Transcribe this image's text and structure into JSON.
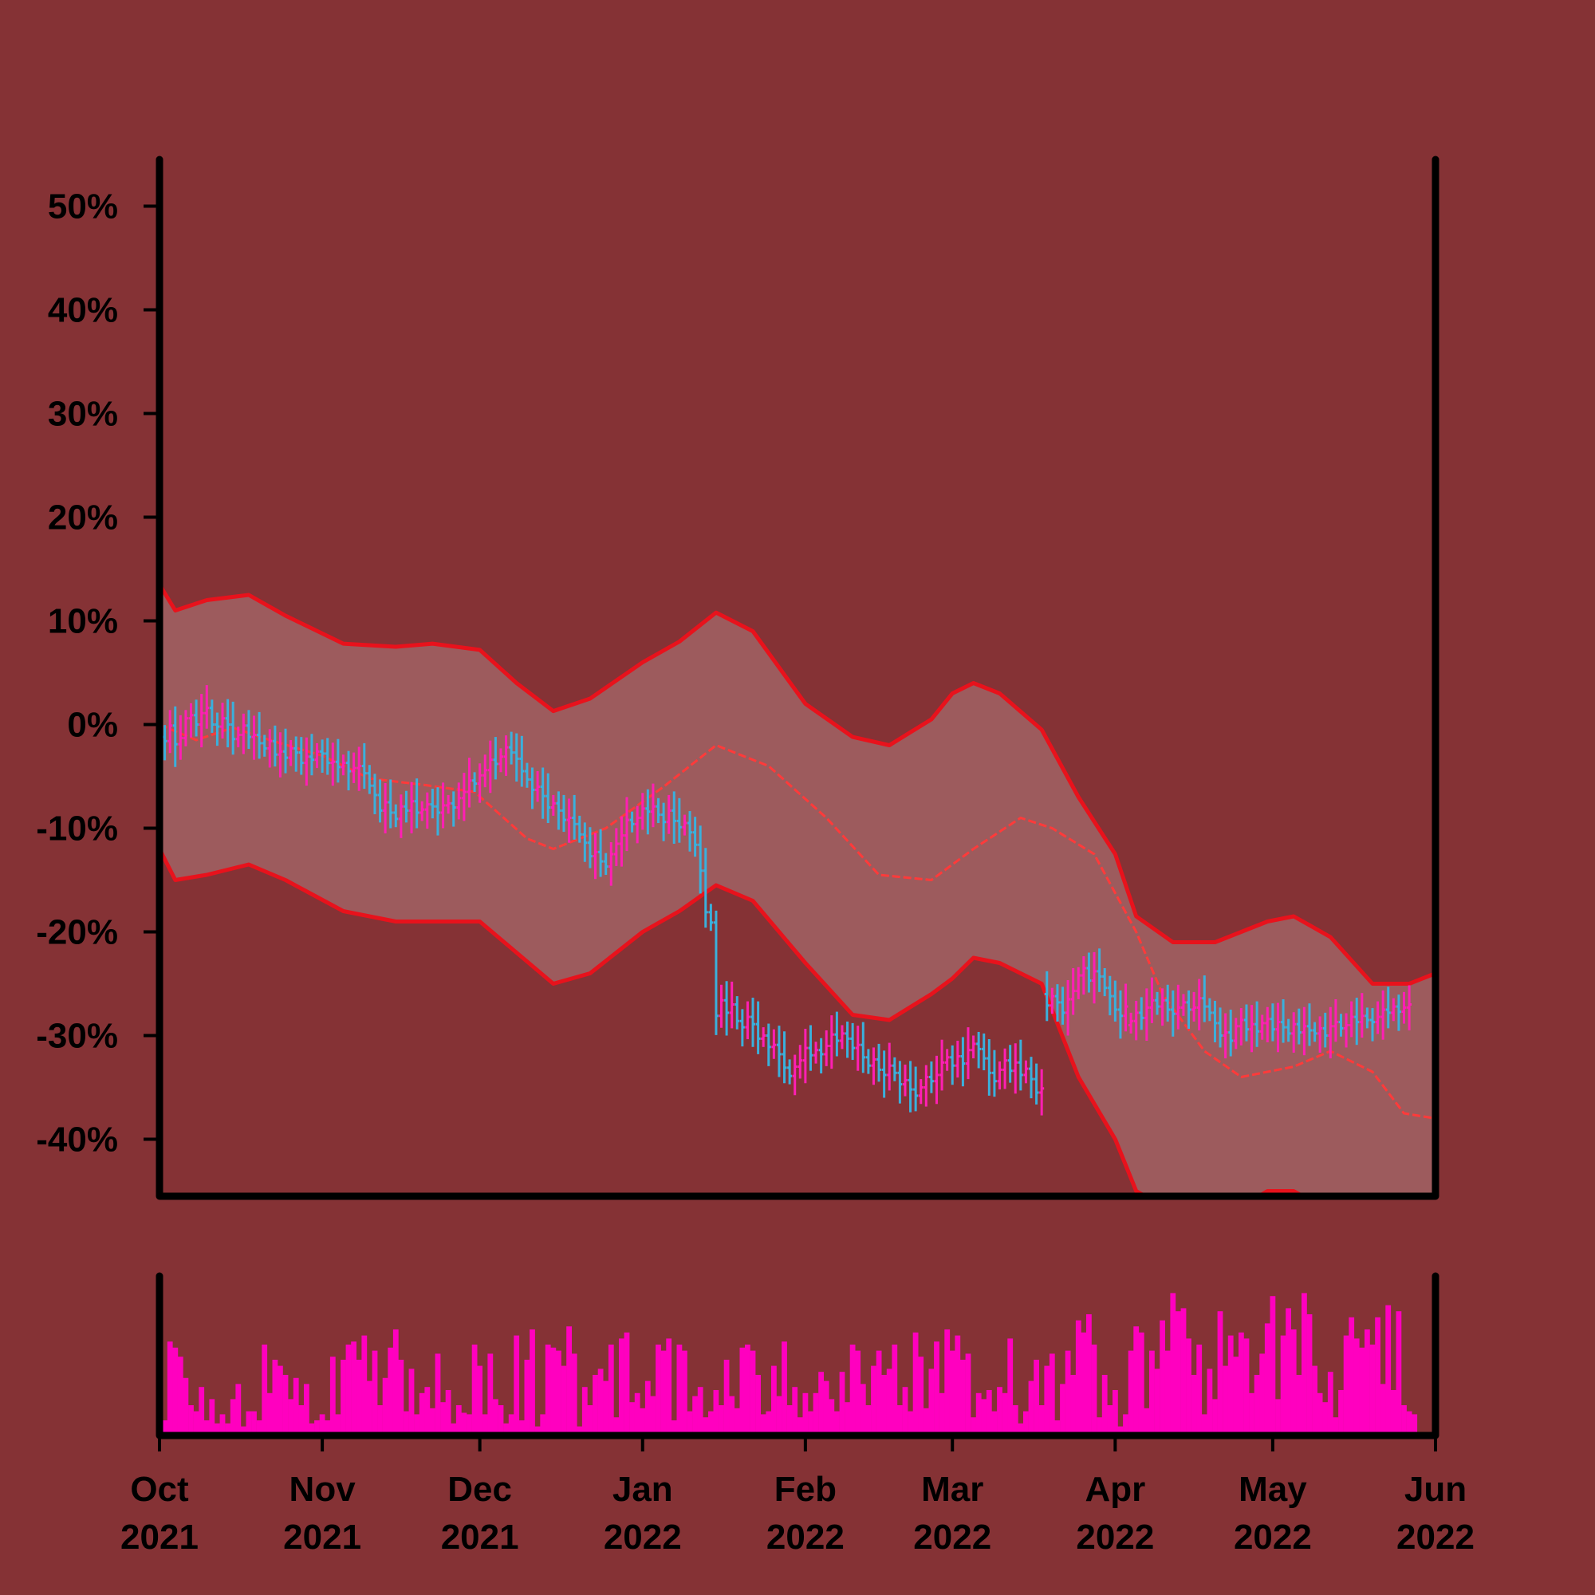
{
  "chart_data": {
    "type": "ohlc",
    "title": "",
    "xlabel": "",
    "ylabel": "",
    "background": "#853235",
    "colors": {
      "up": "#ff1fb4",
      "down": "#3ab0dc",
      "band_line": "#e8121c",
      "band_fill": "#9d5b5d",
      "volume": "#ff00bf",
      "axis": "#000000"
    },
    "y_axis": {
      "ylim": [
        -45.5,
        54.5
      ],
      "ticks": [
        50,
        40,
        30,
        20,
        10,
        0,
        -10,
        -20,
        -30,
        -40
      ],
      "tick_labels": [
        "50%",
        "40%",
        "30%",
        "20%",
        "10%",
        "0%",
        "-10%",
        "-20%",
        "-30%",
        "-40%"
      ]
    },
    "x_axis": {
      "xlim": [
        "2021-10-01",
        "2022-06-01"
      ],
      "ticks": [
        "2021-10-01",
        "2021-11-01",
        "2021-12-01",
        "2022-01-01",
        "2022-02-01",
        "2022-03-01",
        "2022-04-01",
        "2022-05-01",
        "2022-06-01"
      ],
      "tick_labels": [
        [
          "Oct",
          "2021"
        ],
        [
          "Nov",
          "2021"
        ],
        [
          "Dec",
          "2021"
        ],
        [
          "Jan",
          "2022"
        ],
        [
          "Feb",
          "2022"
        ],
        [
          "Mar",
          "2022"
        ],
        [
          "Apr",
          "2022"
        ],
        [
          "May",
          "2022"
        ],
        [
          "Jun",
          "2022"
        ]
      ]
    },
    "moving_average": {
      "name": "",
      "dates": [
        "2021-10-01",
        "2021-10-08",
        "2021-10-15",
        "2021-10-22",
        "2021-11-01",
        "2021-11-10",
        "2021-11-20",
        "2021-11-30",
        "2021-12-10",
        "2021-12-15",
        "2021-12-25",
        "2022-01-05",
        "2022-01-15",
        "2022-01-25",
        "2022-02-05",
        "2022-02-15",
        "2022-02-25",
        "2022-03-05",
        "2022-03-14",
        "2022-03-20",
        "2022-03-28",
        "2022-04-05",
        "2022-04-10",
        "2022-04-18",
        "2022-04-25",
        "2022-05-05",
        "2022-05-12",
        "2022-05-20",
        "2022-05-26",
        "2022-06-01"
      ],
      "values": [
        0,
        -1.5,
        -0.3,
        -1.5,
        -3,
        -5.2,
        -5.8,
        -6.5,
        -11,
        -12,
        -10,
        -6,
        -2,
        -4,
        -9,
        -14.5,
        -15,
        -12,
        -9,
        -10,
        -12.5,
        -20,
        -26,
        -31.5,
        -34,
        -33,
        -31.5,
        -33.5,
        -37.5,
        -38
      ]
    },
    "band_upper": {
      "dates": [
        "2021-10-01",
        "2021-10-04",
        "2021-10-10",
        "2021-10-18",
        "2021-10-25",
        "2021-11-05",
        "2021-11-15",
        "2021-11-22",
        "2021-12-01",
        "2021-12-08",
        "2021-12-15",
        "2021-12-22",
        "2022-01-01",
        "2022-01-08",
        "2022-01-15",
        "2022-01-22",
        "2022-02-01",
        "2022-02-10",
        "2022-02-17",
        "2022-02-25",
        "2022-03-01",
        "2022-03-05",
        "2022-03-10",
        "2022-03-18",
        "2022-03-25",
        "2022-04-01",
        "2022-04-05",
        "2022-04-12",
        "2022-04-20",
        "2022-04-30",
        "2022-05-05",
        "2022-05-12",
        "2022-05-20",
        "2022-05-27",
        "2022-06-01"
      ],
      "values": [
        13.5,
        11,
        12,
        12.5,
        10.5,
        7.8,
        7.5,
        7.8,
        7.2,
        4,
        1.3,
        2.5,
        6,
        8,
        10.8,
        9,
        2,
        -1.2,
        -2,
        0.5,
        3,
        4,
        3,
        -0.5,
        -7,
        -12.5,
        -18.5,
        -21,
        -21,
        -19,
        -18.5,
        -20.5,
        -25,
        -25,
        -24
      ]
    },
    "band_lower": {
      "dates": [
        "2021-10-01",
        "2021-10-04",
        "2021-10-10",
        "2021-10-18",
        "2021-10-25",
        "2021-11-05",
        "2021-11-15",
        "2021-11-22",
        "2021-12-01",
        "2021-12-08",
        "2021-12-15",
        "2021-12-22",
        "2022-01-01",
        "2022-01-08",
        "2022-01-15",
        "2022-01-22",
        "2022-02-01",
        "2022-02-10",
        "2022-02-17",
        "2022-02-25",
        "2022-03-01",
        "2022-03-05",
        "2022-03-10",
        "2022-03-18",
        "2022-03-25",
        "2022-04-01",
        "2022-04-05",
        "2022-04-12",
        "2022-04-20",
        "2022-04-30",
        "2022-05-05",
        "2022-05-12",
        "2022-05-20",
        "2022-05-27",
        "2022-06-01"
      ],
      "values": [
        -12,
        -15,
        -14.5,
        -13.5,
        -15,
        -18,
        -19,
        -19,
        -19,
        -22,
        -25,
        -24,
        -20,
        -18,
        -15.5,
        -17,
        -23,
        -28,
        -28.5,
        -26,
        -24.5,
        -22.5,
        -23,
        -25,
        -34,
        -40,
        -45,
        -47,
        -48,
        -45,
        -45,
        -47,
        -52,
        -52,
        -53
      ]
    },
    "ohlc_daily_changes": [
      -1.2,
      -0.4,
      1.5,
      -1.8,
      0.6,
      1.9,
      0.3,
      -0.9,
      1.1,
      0.5,
      -1.6,
      -0.2,
      0.8,
      -0.6,
      -1.4,
      0.4,
      0.9,
      -1.1,
      0.2,
      -0.8,
      -0.5,
      0.7,
      -1.3,
      0.3,
      -0.6,
      0.9,
      -0.4,
      -1.0,
      0.6,
      -0.3,
      0.8,
      -0.2,
      -0.9,
      0.1,
      -0.5,
      0.4,
      -0.8,
      0.3,
      0.2,
      -0.7,
      -1.2,
      -0.9,
      -1.5,
      0.8,
      -1.0,
      -0.6,
      1.2,
      -0.4,
      0.9,
      -1.1,
      0.3,
      0.5,
      -0.2,
      -0.6,
      0.7,
      0.2,
      -0.4,
      0.9,
      0.6,
      1.1,
      -0.3,
      0.8,
      0.5,
      1.0,
      -0.4,
      0.7,
      0.9,
      -0.5,
      -0.6,
      -1.2,
      -0.8,
      -1.0,
      0.3,
      -0.9,
      -1.1,
      0.4,
      -0.7,
      -0.9,
      0.2,
      -0.6,
      -1.0,
      -0.8,
      -1.3,
      0.4,
      -0.9,
      -0.5,
      1.2,
      1.0,
      0.8,
      1.5,
      -0.4,
      0.6,
      0.9,
      -0.3,
      0.5,
      -0.8,
      -0.7,
      1.1,
      -1.0,
      -0.6,
      0.4,
      -0.9,
      -1.2,
      -2.5,
      -4.0,
      -1.0,
      -9.0,
      1.5,
      -1.2,
      0.8,
      -1.6,
      -0.6,
      1.0,
      -0.7,
      -1.4,
      0.3,
      -1.1,
      0.2,
      -0.9,
      -1.3,
      -0.8,
      0.9,
      0.6,
      1.2,
      -0.7,
      0.5,
      -0.4,
      0.8,
      1.1,
      -0.6,
      0.7,
      -0.5,
      -0.9,
      0.3,
      -1.2,
      -0.8,
      0.6,
      -1.0,
      -0.5,
      0.9,
      -0.7,
      -1.1,
      0.4,
      -0.9,
      -0.6,
      0.8,
      1.0,
      -0.4,
      0.6,
      1.2,
      0.5,
      -0.8,
      0.9,
      -0.7,
      1.3,
      0.6,
      -0.5,
      -0.9,
      -1.4,
      -0.8,
      1.1,
      0.9,
      -1.0,
      0.8,
      -1.2,
      0.6,
      -1.0,
      -1.3,
      0.4,
      -1.1,
      0.9,
      -0.6,
      -1.0,
      1.3,
      0.8,
      1.5,
      0.7,
      -1.2,
      0.9,
      -0.5,
      -1.1,
      -0.8,
      -1.3,
      -0.6,
      0.9,
      0.4,
      0.8,
      -0.5,
      1.0,
      0.7,
      -0.6,
      0.6,
      -0.9,
      -0.4,
      0.6,
      0.5,
      -0.7,
      0.2,
      0.9,
      -0.8,
      -0.6,
      -1.0,
      -1.2,
      0.3,
      -0.8,
      1.4,
      0.6,
      -0.9,
      0.5,
      -0.7,
      0.8,
      0.4,
      -1.0,
      0.7,
      -0.5,
      -0.6,
      0.9,
      -0.8,
      0.6,
      -0.4,
      -0.3,
      0.5,
      -0.7,
      0.9,
      0.4,
      -0.6,
      0.3,
      0.8,
      -0.5,
      0.6,
      -0.4,
      -0.2,
      0.5,
      0.7,
      -0.3,
      0.6,
      -0.5,
      0.4,
      0.3
    ],
    "ohlc_breaks": {
      "2022-03-19": -26,
      "2022-04-04": -29
    },
    "volume": {
      "note": "relative daily volume, max = 1",
      "values": [
        0.33,
        0.1,
        0.62,
        0.58,
        0.52,
        0.38,
        0.2,
        0.16,
        0.32,
        0.1,
        0.24,
        0.08,
        0.14,
        0.08,
        0.24,
        0.34,
        0.06,
        0.16,
        0.16,
        0.1,
        0.6,
        0.28,
        0.5,
        0.46,
        0.4,
        0.24,
        0.38,
        0.2,
        0.34,
        0.08,
        0.1,
        0.14,
        0.1,
        0.52,
        0.14,
        0.5,
        0.6,
        0.62,
        0.5,
        0.66,
        0.36,
        0.56,
        0.2,
        0.38,
        0.58,
        0.7,
        0.5,
        0.16,
        0.44,
        0.14,
        0.28,
        0.32,
        0.18,
        0.54,
        0.22,
        0.3,
        0.08,
        0.2,
        0.15,
        0.14,
        0.6,
        0.46,
        0.14,
        0.54,
        0.24,
        0.2,
        0.08,
        0.14,
        0.66,
        0.1,
        0.5,
        0.7,
        0.06,
        0.14,
        0.6,
        0.58,
        0.56,
        0.46,
        0.72,
        0.54,
        0.06,
        0.32,
        0.2,
        0.4,
        0.44,
        0.36,
        0.6,
        0.12,
        0.64,
        0.68,
        0.22,
        0.28,
        0.18,
        0.36,
        0.26,
        0.6,
        0.56,
        0.64,
        0.1,
        0.6,
        0.56,
        0.16,
        0.26,
        0.32,
        0.12,
        0.16,
        0.3,
        0.2,
        0.5,
        0.26,
        0.18,
        0.58,
        0.6,
        0.56,
        0.4,
        0.14,
        0.16,
        0.46,
        0.26,
        0.62,
        0.2,
        0.32,
        0.12,
        0.28,
        0.16,
        0.28,
        0.42,
        0.36,
        0.24,
        0.16,
        0.42,
        0.22,
        0.6,
        0.56,
        0.34,
        0.2,
        0.46,
        0.56,
        0.4,
        0.44,
        0.6,
        0.2,
        0.32,
        0.16,
        0.68,
        0.52,
        0.18,
        0.44,
        0.62,
        0.28,
        0.7,
        0.56,
        0.66,
        0.5,
        0.54,
        0.12,
        0.28,
        0.24,
        0.3,
        0.16,
        0.32,
        0.28,
        0.64,
        0.2,
        0.08,
        0.16,
        0.36,
        0.5,
        0.2,
        0.46,
        0.54,
        0.1,
        0.34,
        0.56,
        0.4,
        0.76,
        0.68,
        0.8,
        0.6,
        0.12,
        0.4,
        0.2,
        0.3,
        0.06,
        0.14,
        0.56,
        0.72,
        0.68,
        0.18,
        0.56,
        0.44,
        0.76,
        0.56,
        0.94,
        0.82,
        0.84,
        0.64,
        0.4,
        0.6,
        0.14,
        0.44,
        0.24,
        0.82,
        0.46,
        0.66,
        0.52,
        0.68,
        0.64,
        0.28,
        0.4,
        0.54,
        0.74,
        0.92,
        0.24,
        0.66,
        0.84,
        0.7,
        0.4,
        0.94,
        0.8,
        0.46,
        0.28,
        0.22,
        0.42,
        0.12,
        0.3,
        0.66,
        0.78,
        0.64,
        0.58,
        0.7,
        0.6,
        0.78,
        0.34,
        0.86,
        0.3,
        0.82,
        0.2,
        0.16,
        0.14
      ]
    }
  }
}
